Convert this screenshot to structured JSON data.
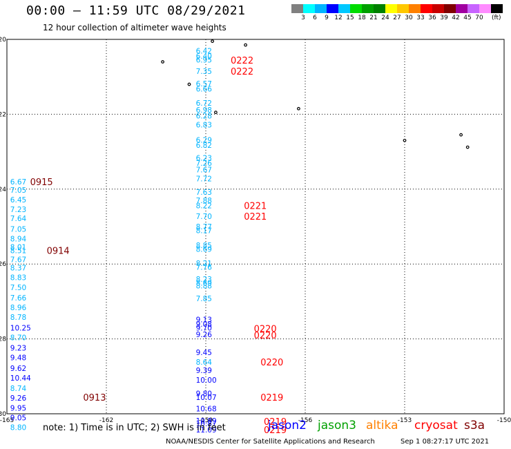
{
  "header": {
    "title": "00:00 – 11:59 UTC 08/29/2021",
    "subtitle": "12 hour collection of altimeter wave heights"
  },
  "colorbar": {
    "colors": [
      "#808080",
      "#00ffff",
      "#00b4ff",
      "#0000ff",
      "#00c8ff",
      "#00dc00",
      "#00a000",
      "#008000",
      "#ffff00",
      "#ffc800",
      "#ff8000",
      "#ff0000",
      "#c80000",
      "#800000",
      "#a000a0",
      "#c864ff",
      "#ff8cff",
      "#000000"
    ],
    "labels": [
      "3",
      "6",
      "9",
      "12",
      "15",
      "18",
      "21",
      "24",
      "27",
      "30",
      "33",
      "36",
      "39",
      "42",
      "45",
      "70"
    ],
    "unit": "(ft)"
  },
  "footer": {
    "note": "note:  1) Time is in UTC;  2) SWH is in feet",
    "missions": [
      {
        "name": "jason2",
        "color": "#0000ff"
      },
      {
        "name": "jason3",
        "color": "#00a000"
      },
      {
        "name": "altika",
        "color": "#ff8000"
      },
      {
        "name": "cryosat",
        "color": "#ff0000"
      },
      {
        "name": "s3a",
        "color": "#800000"
      }
    ],
    "credit": "NOAA/NESDIS Center for Satellite Applications and Research",
    "timestamp": "Sep  1 08:27:17 UTC 2021"
  },
  "chart_data": {
    "type": "scatter",
    "xlim": [
      -165,
      -150
    ],
    "ylim": [
      -30,
      -20
    ],
    "x_ticks": [
      "-165",
      "-162",
      "-159",
      "-156",
      "-153",
      "-150"
    ],
    "y_ticks": [
      "-20",
      "-22",
      "-24",
      "-26",
      "-28",
      "-30"
    ],
    "grid": true,
    "series": [
      {
        "points": [
          {
            "lon": -159.3,
            "lat": -20.3,
            "label": "6.42",
            "color": "#00b4ff"
          },
          {
            "lon": -159.3,
            "lat": -20.44,
            "label": "6.40",
            "color": "#00b4ff"
          },
          {
            "lon": -159.3,
            "lat": -20.54,
            "label": "6.95",
            "color": "#00b4ff"
          },
          {
            "lon": -159.3,
            "lat": -20.85,
            "label": "7.35",
            "color": "#00b4ff"
          },
          {
            "lon": -159.3,
            "lat": -21.18,
            "label": "6.57",
            "color": "#00b4ff"
          },
          {
            "lon": -159.3,
            "lat": -21.32,
            "label": "6.66",
            "color": "#00b4ff"
          },
          {
            "lon": -159.3,
            "lat": -21.7,
            "label": "6.72",
            "color": "#00b4ff"
          },
          {
            "lon": -159.3,
            "lat": -21.88,
            "label": "6.98",
            "color": "#00b4ff"
          },
          {
            "lon": -159.3,
            "lat": -22.04,
            "label": "6.28",
            "color": "#00b4ff"
          },
          {
            "lon": -159.3,
            "lat": -22.28,
            "label": "6.83",
            "color": "#00b4ff"
          },
          {
            "lon": -159.3,
            "lat": -22.68,
            "label": "6.29",
            "color": "#00b4ff"
          },
          {
            "lon": -159.3,
            "lat": -22.82,
            "label": "6.82",
            "color": "#00b4ff"
          },
          {
            "lon": -159.3,
            "lat": -23.16,
            "label": "6.23",
            "color": "#00b4ff"
          },
          {
            "lon": -159.3,
            "lat": -23.3,
            "label": "7.26",
            "color": "#00b4ff"
          },
          {
            "lon": -159.3,
            "lat": -23.48,
            "label": "7.67",
            "color": "#00b4ff"
          },
          {
            "lon": -159.3,
            "lat": -23.72,
            "label": "7.72",
            "color": "#00b4ff"
          },
          {
            "lon": -159.3,
            "lat": -24.08,
            "label": "7.63",
            "color": "#00b4ff"
          },
          {
            "lon": -159.3,
            "lat": -24.3,
            "label": "7.88",
            "color": "#00b4ff"
          },
          {
            "lon": -159.3,
            "lat": -24.44,
            "label": "8.22",
            "color": "#00b4ff"
          },
          {
            "lon": -159.3,
            "lat": -24.72,
            "label": "7.70",
            "color": "#00b4ff"
          },
          {
            "lon": -159.3,
            "lat": -25.0,
            "label": "8.77",
            "color": "#00b4ff"
          },
          {
            "lon": -159.3,
            "lat": -25.1,
            "label": "8.17",
            "color": "#00b4ff"
          },
          {
            "lon": -159.3,
            "lat": -25.5,
            "label": "8.85",
            "color": "#00b4ff"
          },
          {
            "lon": -159.3,
            "lat": -25.6,
            "label": "8.69",
            "color": "#00b4ff"
          },
          {
            "lon": -159.3,
            "lat": -25.98,
            "label": "8.21",
            "color": "#00b4ff"
          },
          {
            "lon": -159.3,
            "lat": -26.08,
            "label": "7.76",
            "color": "#00b4ff"
          },
          {
            "lon": -159.3,
            "lat": -26.4,
            "label": "8.23",
            "color": "#00b4ff"
          },
          {
            "lon": -159.3,
            "lat": -26.5,
            "label": "8.69",
            "color": "#00b4ff"
          },
          {
            "lon": -159.3,
            "lat": -26.58,
            "label": "8.88",
            "color": "#00b4ff"
          },
          {
            "lon": -159.3,
            "lat": -26.92,
            "label": "7.85",
            "color": "#00b4ff"
          },
          {
            "lon": -159.3,
            "lat": -27.48,
            "label": "9.13",
            "color": "#0000ff"
          },
          {
            "lon": -159.3,
            "lat": -27.6,
            "label": "9.08",
            "color": "#0000ff"
          },
          {
            "lon": -159.3,
            "lat": -27.7,
            "label": "9.70",
            "color": "#0000ff"
          },
          {
            "lon": -159.3,
            "lat": -27.88,
            "label": "9.26",
            "color": "#0000ff"
          },
          {
            "lon": -159.3,
            "lat": -28.36,
            "label": "9.45",
            "color": "#0000ff"
          },
          {
            "lon": -159.3,
            "lat": -28.62,
            "label": "8.64",
            "color": "#00b4ff"
          },
          {
            "lon": -159.3,
            "lat": -28.84,
            "label": "9.39",
            "color": "#0000ff"
          },
          {
            "lon": -159.3,
            "lat": -29.1,
            "label": "10.00",
            "color": "#0000ff"
          },
          {
            "lon": -159.3,
            "lat": -29.46,
            "label": "9.80",
            "color": "#0000ff"
          },
          {
            "lon": -159.3,
            "lat": -29.56,
            "label": "10.07",
            "color": "#0000ff"
          },
          {
            "lon": -159.3,
            "lat": -29.86,
            "label": "10.68",
            "color": "#0000ff"
          },
          {
            "lon": -159.3,
            "lat": -30.18,
            "label": "10.89",
            "color": "#0000ff"
          },
          {
            "lon": -159.3,
            "lat": -30.26,
            "label": "10.87",
            "color": "#0000ff"
          },
          {
            "lon": -159.3,
            "lat": -30.42,
            "label": "11.09",
            "color": "#0000ff"
          },
          {
            "lon": -164.9,
            "lat": -23.8,
            "label": "6.67",
            "color": "#00b4ff"
          },
          {
            "lon": -164.9,
            "lat": -24.02,
            "label": "7.05",
            "color": "#00b4ff"
          },
          {
            "lon": -164.9,
            "lat": -24.28,
            "label": "6.45",
            "color": "#00b4ff"
          },
          {
            "lon": -164.9,
            "lat": -24.54,
            "label": "7.23",
            "color": "#00b4ff"
          },
          {
            "lon": -164.9,
            "lat": -24.78,
            "label": "7.64",
            "color": "#00b4ff"
          },
          {
            "lon": -164.9,
            "lat": -25.06,
            "label": "7.05",
            "color": "#00b4ff"
          },
          {
            "lon": -164.9,
            "lat": -25.32,
            "label": "8.94",
            "color": "#00b4ff"
          },
          {
            "lon": -164.9,
            "lat": -25.54,
            "label": "8.01",
            "color": "#00b4ff"
          },
          {
            "lon": -164.9,
            "lat": -25.64,
            "label": "8.51",
            "color": "#00b4ff"
          },
          {
            "lon": -164.9,
            "lat": -25.88,
            "label": "7.67",
            "color": "#00b4ff"
          },
          {
            "lon": -164.9,
            "lat": -26.1,
            "label": "8.37",
            "color": "#00b4ff"
          },
          {
            "lon": -164.9,
            "lat": -26.36,
            "label": "8.83",
            "color": "#00b4ff"
          },
          {
            "lon": -164.9,
            "lat": -26.62,
            "label": "7.50",
            "color": "#00b4ff"
          },
          {
            "lon": -164.9,
            "lat": -26.9,
            "label": "7.66",
            "color": "#00b4ff"
          },
          {
            "lon": -164.9,
            "lat": -27.16,
            "label": "8.96",
            "color": "#00b4ff"
          },
          {
            "lon": -164.9,
            "lat": -27.42,
            "label": "8.78",
            "color": "#00b4ff"
          },
          {
            "lon": -164.9,
            "lat": -27.7,
            "label": "10.25",
            "color": "#0000ff"
          },
          {
            "lon": -164.9,
            "lat": -27.96,
            "label": "8.70",
            "color": "#00b4ff"
          },
          {
            "lon": -164.9,
            "lat": -28.24,
            "label": "9.23",
            "color": "#0000ff"
          },
          {
            "lon": -164.9,
            "lat": -28.5,
            "label": "9.48",
            "color": "#0000ff"
          },
          {
            "lon": -164.9,
            "lat": -28.78,
            "label": "9.62",
            "color": "#0000ff"
          },
          {
            "lon": -164.9,
            "lat": -29.04,
            "label": "10.44",
            "color": "#0000ff"
          },
          {
            "lon": -164.9,
            "lat": -29.32,
            "label": "8.74",
            "color": "#00b4ff"
          },
          {
            "lon": -164.9,
            "lat": -29.58,
            "label": "9.26",
            "color": "#0000ff"
          },
          {
            "lon": -164.9,
            "lat": -29.84,
            "label": "9.95",
            "color": "#0000ff"
          },
          {
            "lon": -164.9,
            "lat": -30.1,
            "label": "9.05",
            "color": "#0000ff"
          },
          {
            "lon": -164.9,
            "lat": -30.36,
            "label": "8.80",
            "color": "#00b4ff"
          }
        ]
      }
    ],
    "time_labels": [
      {
        "label": "0222",
        "color": "#ff0000",
        "lon": -158.25,
        "lat": -20.55
      },
      {
        "label": "0222",
        "color": "#ff0000",
        "lon": -158.25,
        "lat": -20.85
      },
      {
        "label": "0221",
        "color": "#ff0000",
        "lon": -157.85,
        "lat": -24.44
      },
      {
        "label": "0221",
        "color": "#ff0000",
        "lon": -157.85,
        "lat": -24.72
      },
      {
        "label": "0220",
        "color": "#ff0000",
        "lon": -157.55,
        "lat": -27.72
      },
      {
        "label": "0220",
        "color": "#ff0000",
        "lon": -157.55,
        "lat": -27.9
      },
      {
        "label": "0220",
        "color": "#ff0000",
        "lon": -157.35,
        "lat": -28.62
      },
      {
        "label": "0219",
        "color": "#ff0000",
        "lon": -157.35,
        "lat": -29.56
      },
      {
        "label": "0219",
        "color": "#ff0000",
        "lon": -157.25,
        "lat": -30.2
      },
      {
        "label": "0219",
        "color": "#ff0000",
        "lon": -157.25,
        "lat": -30.42
      },
      {
        "label": "0915",
        "color": "#800000",
        "lon": -164.3,
        "lat": -23.8
      },
      {
        "label": "0914",
        "color": "#800000",
        "lon": -163.8,
        "lat": -25.64
      },
      {
        "label": "0913",
        "color": "#800000",
        "lon": -162.7,
        "lat": -29.56
      }
    ],
    "islands": [
      {
        "lon": -160.3,
        "lat": -20.6
      },
      {
        "lon": -159.5,
        "lat": -21.2
      },
      {
        "lon": -158.7,
        "lat": -21.95
      },
      {
        "lon": -156.2,
        "lat": -21.85
      },
      {
        "lon": -153.0,
        "lat": -22.7
      },
      {
        "lon": -151.3,
        "lat": -22.55
      },
      {
        "lon": -151.1,
        "lat": -22.88
      },
      {
        "lon": -157.8,
        "lat": -20.15
      },
      {
        "lon": -158.8,
        "lat": -20.05
      }
    ]
  }
}
